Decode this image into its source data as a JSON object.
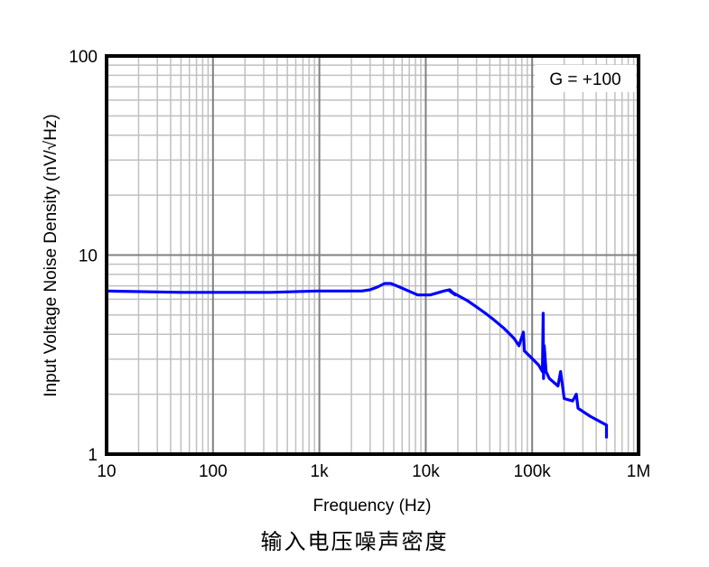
{
  "caption": "输入电压噪声密度",
  "annotation": "G = +100",
  "chart_data": {
    "type": "line",
    "title": "",
    "xlabel": "Frequency (Hz)",
    "ylabel": "Input Voltage Noise Density (nV/√Hz)",
    "xscale": "log",
    "yscale": "log",
    "xlim": [
      10,
      1000000
    ],
    "ylim": [
      1,
      100
    ],
    "x_tick_labels": [
      "10",
      "100",
      "1k",
      "10k",
      "100k",
      "1M"
    ],
    "y_tick_labels": [
      "1",
      "10",
      "100"
    ],
    "grid": true,
    "legend": null,
    "annotations": [
      "G = +100"
    ],
    "line_color": "#0000FF",
    "series": [
      {
        "name": "G = +100",
        "x": [
          10,
          50,
          350,
          950,
          2500,
          3000,
          3500,
          4100,
          4700,
          5700,
          6900,
          8400,
          11000,
          14800,
          16800,
          19000,
          16800,
          24600,
          29900,
          36400,
          44300,
          53900,
          61800,
          68100,
          75100,
          82800,
          84500,
          95400,
          115000,
          125000,
          127000,
          128000,
          130000,
          135000,
          145000,
          175000,
          185000,
          200000,
          240000,
          260000,
          270000,
          350000,
          520000,
          780000,
          960000,
          1000000
        ],
        "y": [
          6.6,
          6.5,
          6.5,
          6.6,
          6.6,
          6.7,
          6.9,
          7.2,
          7.2,
          6.9,
          6.6,
          6.3,
          6.3,
          6.6,
          6.7,
          6.3,
          6.6,
          5.9,
          5.5,
          5.1,
          4.7,
          4.3,
          4.0,
          3.8,
          3.5,
          4.1,
          3.3,
          3.1,
          2.8,
          2.6,
          5.1,
          2.4,
          3.5,
          2.6,
          2.4,
          2.2,
          2.6,
          1.9,
          1.85,
          2.0,
          1.7,
          1.55,
          1.4,
          1.35,
          1.3,
          1.2
        ]
      }
    ]
  }
}
